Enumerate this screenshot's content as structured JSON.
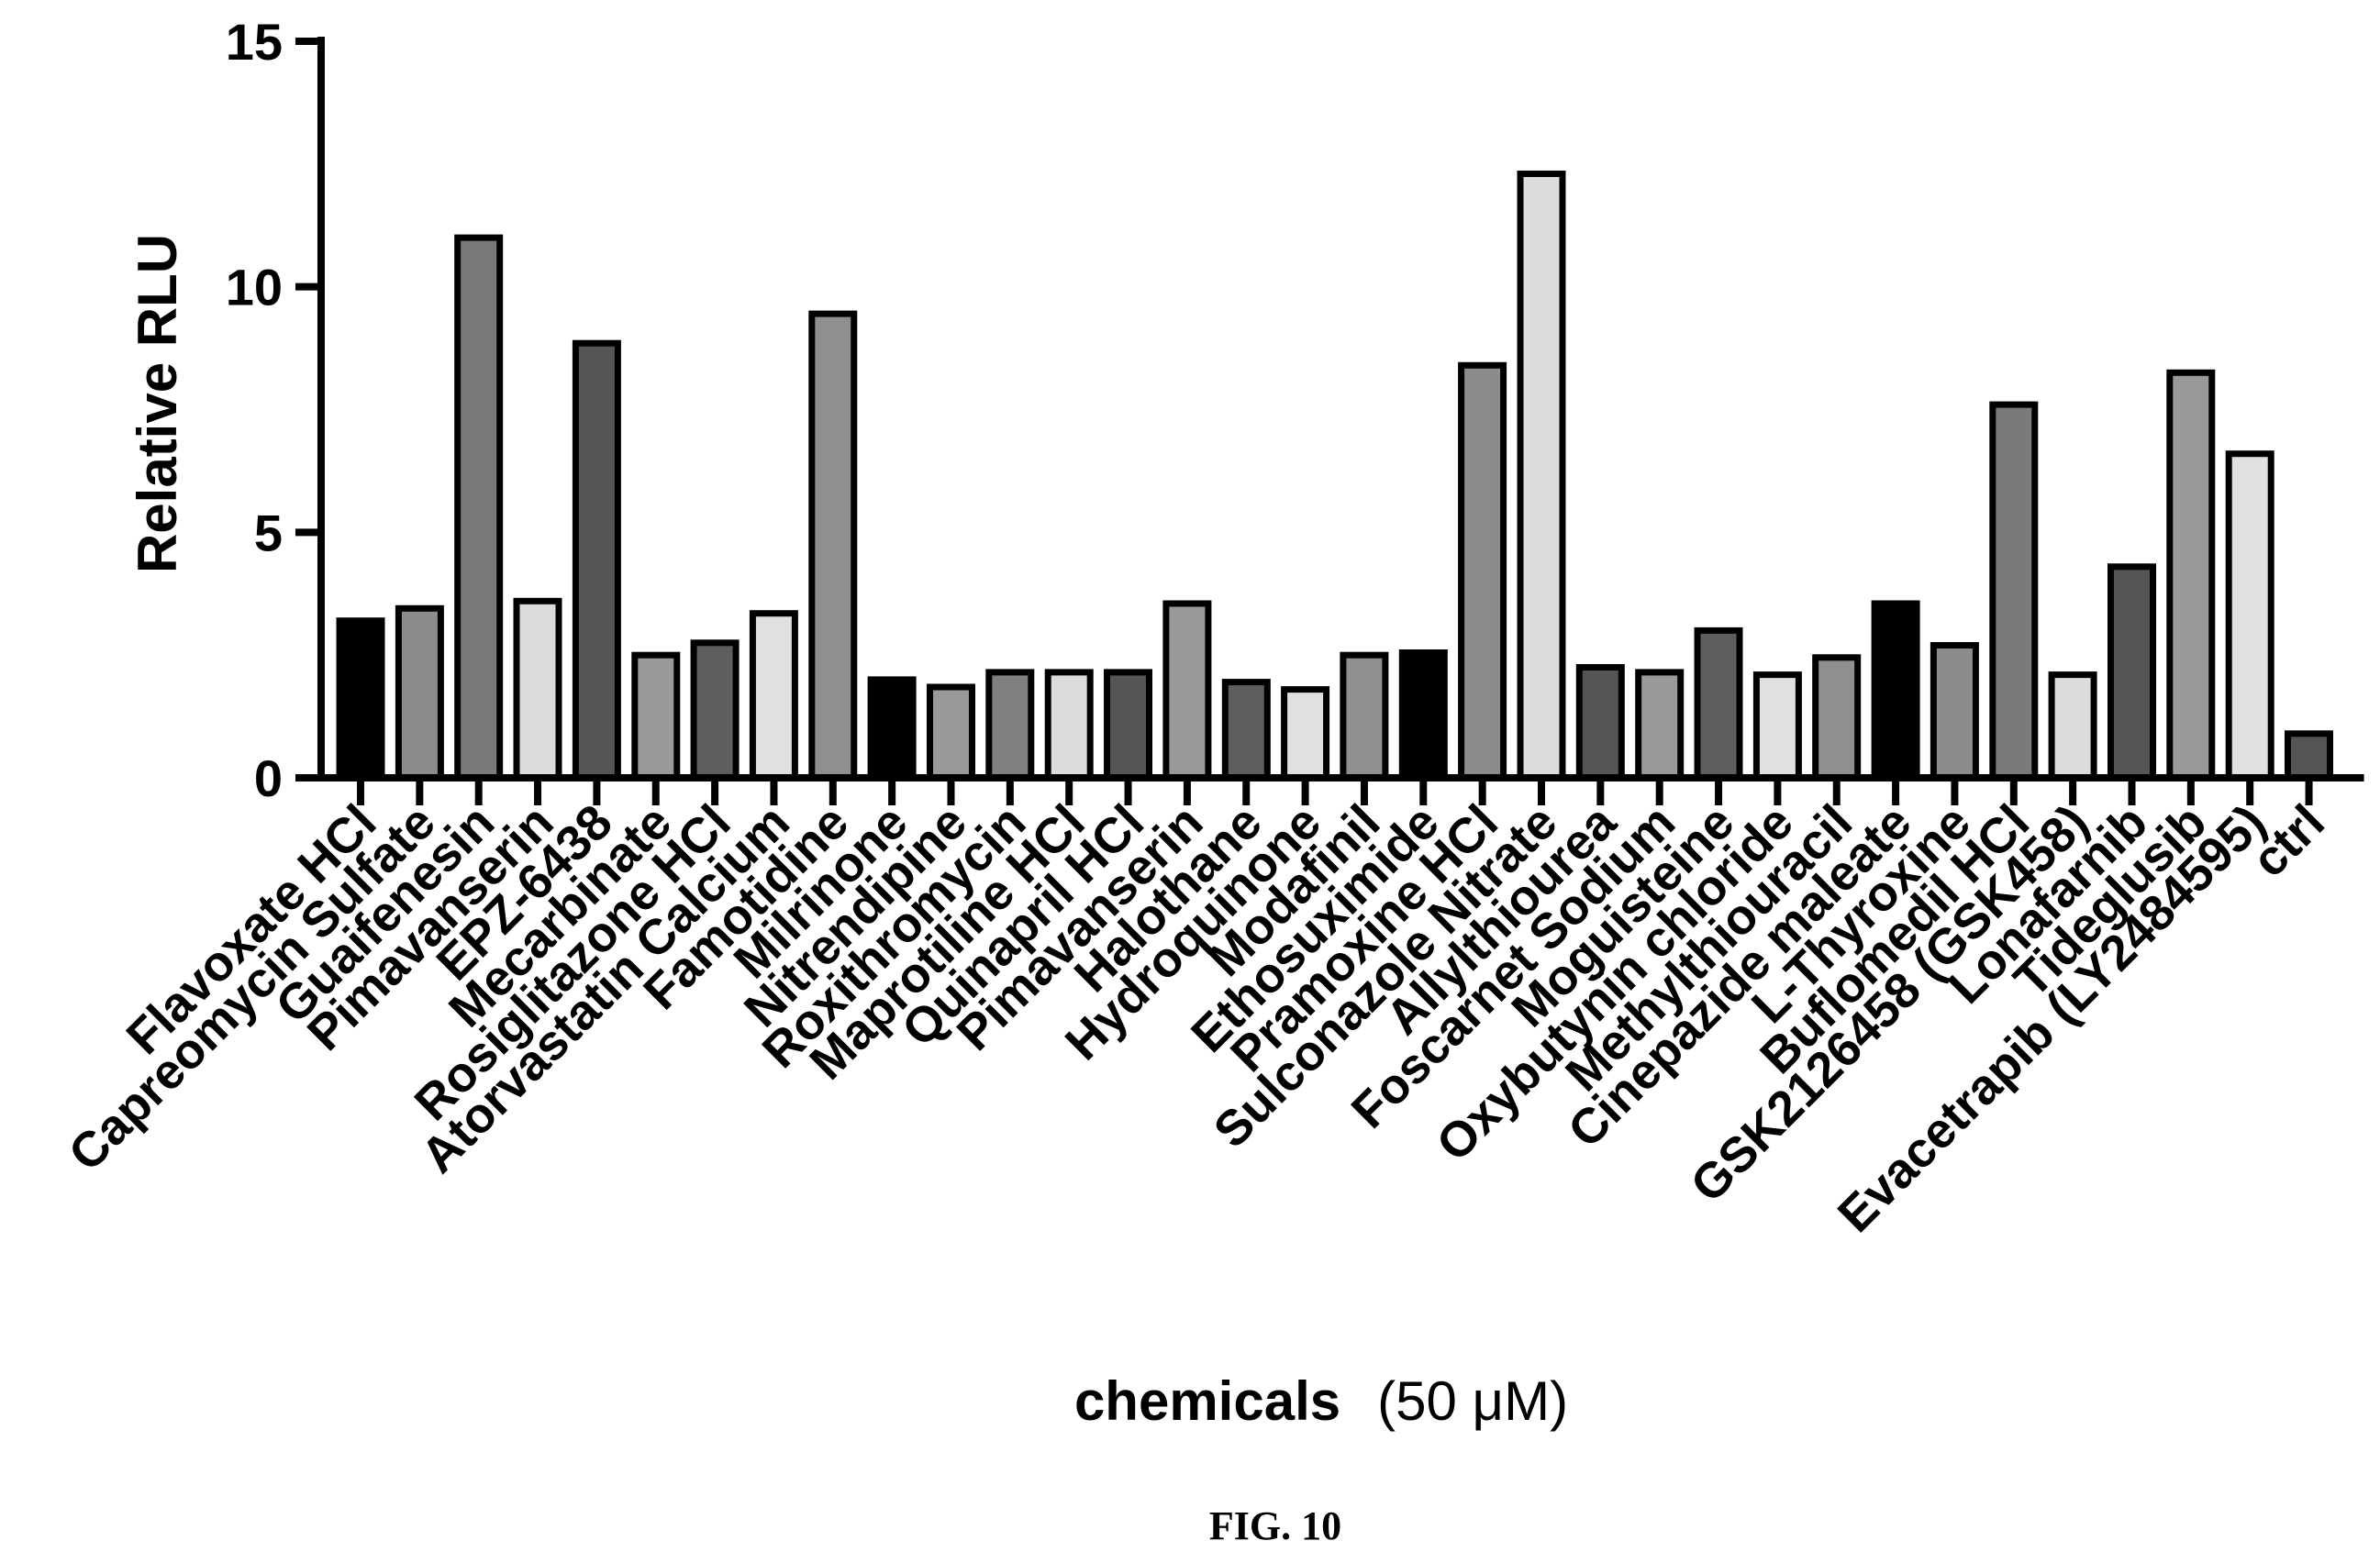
{
  "chart_data": {
    "type": "bar",
    "ylabel": "Relative RLU",
    "xlabel": "chemicals",
    "xlabel_unit": "(50 μM)",
    "ylim": [
      0,
      15
    ],
    "yticks": [
      "0",
      "5",
      "10",
      "15"
    ],
    "grid": false,
    "legend": "none",
    "categories": [
      "Flavoxate HCl",
      "Capreomycin Sulfate",
      "Guaifenesin",
      "Pimavanserin",
      "EPZ-6438",
      "Mecarbinate",
      "Rosiglitazone HCl",
      "Atorvastatin Calcium",
      "Famotidine",
      "Milrinone",
      "Nitrendipine",
      "Roxithromycin",
      "Maprotiline HCl",
      "Quinapril HCl",
      "Pimavanserin",
      "Halothane",
      "Hydroquinone",
      "Modafinil",
      "Ethosuximide",
      "Pramoxine HCl",
      "Sulconazole Nitrate",
      "Allylthiourea",
      "Foscarnet Sodium",
      "Moguisteine",
      "Oxybutynin chloride",
      "Methylthiouracil",
      "Cinepazide maleate",
      "L-Thyroxine",
      "Buflomedil HCl",
      "GSK2126458 (GSK458)",
      "Lonafarnib",
      "Tideglusib",
      "Evacetrapib (LY2484595)",
      "ctrl"
    ],
    "values": [
      3.2,
      3.45,
      11.0,
      3.6,
      8.85,
      2.5,
      2.75,
      3.35,
      9.45,
      2.0,
      1.85,
      2.15,
      2.15,
      2.15,
      3.55,
      1.95,
      1.8,
      2.5,
      2.55,
      8.4,
      12.3,
      2.25,
      2.15,
      3.0,
      2.1,
      2.45,
      3.55,
      2.7,
      7.6,
      2.1,
      4.3,
      8.25,
      6.6,
      0.9
    ],
    "bar_colors": [
      "#000000",
      "#8c8c8c",
      "#7a7a7a",
      "#dcdcdc",
      "#555555",
      "#999999",
      "#5e5e5e",
      "#e0e0e0",
      "#8f8f8f",
      "#000000",
      "#999999",
      "#808080",
      "#dcdcdc",
      "#555555",
      "#999999",
      "#5e5e5e",
      "#e0e0e0",
      "#8f8f8f",
      "#000000",
      "#8c8c8c",
      "#dcdcdc",
      "#555555",
      "#999999",
      "#5e5e5e",
      "#e0e0e0",
      "#8f8f8f",
      "#000000",
      "#8c8c8c",
      "#7a7a7a",
      "#dcdcdc",
      "#555555",
      "#999999",
      "#e0e0e0",
      "#555555"
    ]
  },
  "caption": "FIG. 10"
}
